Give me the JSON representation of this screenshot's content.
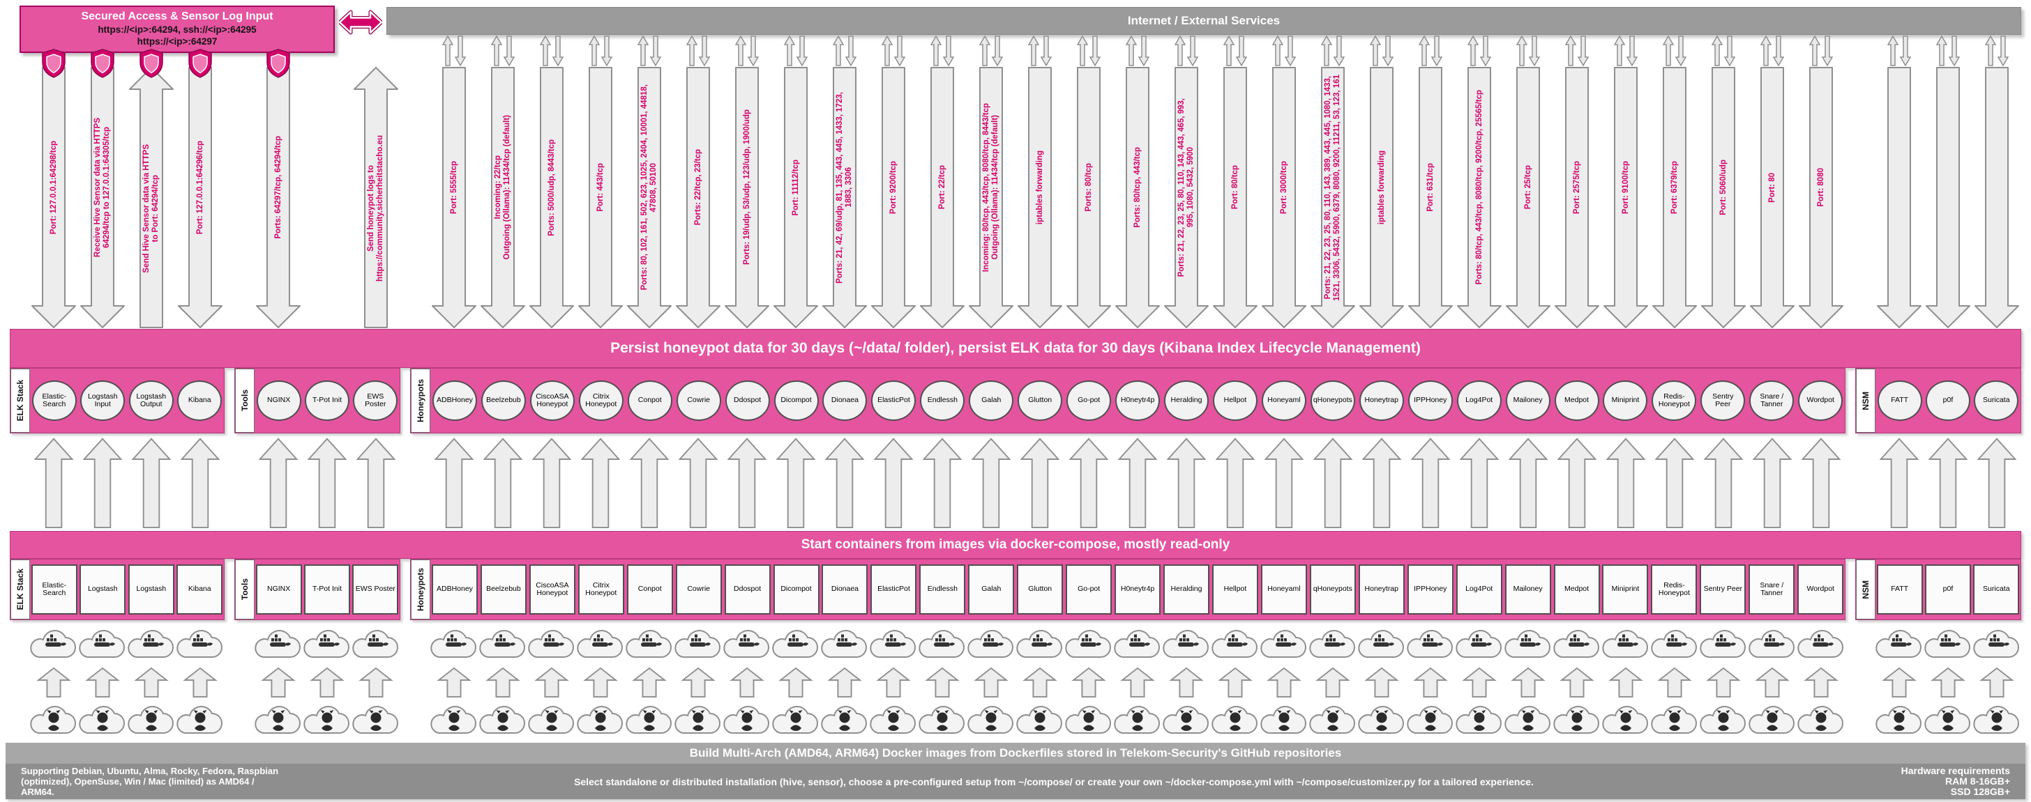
{
  "header": {
    "secured_box": {
      "title": "Secured Access & Sensor Log Input",
      "line1": "https://<ip>:64294, ssh://<ip>:64295",
      "line2": "https://<ip>:64297"
    },
    "internet_banner": "Internet / External Services"
  },
  "banners": {
    "persist": "Persist honeypot data for 30 days (~/data/ folder), persist ELK data for 30 days (Kibana Index Lifecycle Management)",
    "start": "Start containers from images via docker-compose, mostly read-only",
    "build": "Build Multi-Arch (AMD64, ARM64) Docker images from Dockerfiles stored in Telekom-Security's GitHub repositories"
  },
  "footer": {
    "left": "Supporting Debian, Ubuntu, Alma, Rocky, Fedora, Raspbian (optimized), OpenSuse, Win / Mac (limited) as AMD64 / ARM64.",
    "center": "Select standalone or distributed installation (hive, sensor), choose a pre-configured setup from ~/compose/ or create your own ~/docker-compose.yml with ~/compose/customizer.py for a tailored experience.",
    "right_title": "Hardware requirements",
    "right_lines": [
      "RAM 8-16GB+",
      "SSD 128GB+"
    ]
  },
  "icons": {
    "secure": "security-shield-icon",
    "bidirectional_traffic": "up-down-traffic-icon",
    "exchange": "left-right-arrow-icon",
    "docker": "docker-cloud-icon",
    "github": "github-cloud-icon"
  },
  "colors": {
    "magenta": "#d4006a",
    "band_pink": "#e5549f",
    "gray_banner": "#9b9b9b",
    "footer_gray": "#8e8e8e",
    "arrow_fill": "#ededed",
    "node_fill": "#f2f2f2"
  },
  "groups": [
    {
      "label": "ELK Stack",
      "nodes": [
        {
          "container": "Elastic-Search",
          "image": "Elastic-Search",
          "top": "shield",
          "arrow": {
            "dir": "down",
            "lines": [
              "Port: 127.0.0.1:64298/tcp"
            ]
          }
        },
        {
          "container": "Logstash Input",
          "image": "Logstash",
          "top": "shield",
          "arrow": {
            "dir": "down",
            "lines": [
              "Receive Hive Sensor data via HTTPS",
              "64294/tcp to 127.0.0.1:64305/tcp"
            ]
          }
        },
        {
          "container": "Logstash Output",
          "image": "Logstash",
          "top": "shield",
          "arrow": {
            "dir": "up",
            "lines": [
              "Send Hive Sensor data via HTTPS",
              "to Port: 64294/tcp"
            ]
          }
        },
        {
          "container": "Kibana",
          "image": "Kibana",
          "top": "shield",
          "arrow": {
            "dir": "down",
            "lines": [
              "Port: 127.0.0.1:64296/tcp"
            ]
          }
        }
      ]
    },
    {
      "label": "Tools",
      "nodes": [
        {
          "container": "NGINX",
          "image": "NGINX",
          "top": "shield",
          "arrow": {
            "dir": "down",
            "lines": [
              "Ports: 64297/tcp, 64294/tcp"
            ]
          }
        },
        {
          "container": "T-Pot Init",
          "image": "T-Pot Init",
          "top": "none",
          "arrow": null
        },
        {
          "container": "EWS Poster",
          "image": "EWS Poster",
          "top": "none",
          "arrow": {
            "dir": "up",
            "lines": [
              "Send honeypot logs to",
              "https://community.sicherheitstacho.eu"
            ]
          }
        }
      ]
    },
    {
      "label": "Honeypots",
      "nodes": [
        {
          "container": "ADBHoney",
          "image": "ADBHoney",
          "top": "bidir",
          "arrow": {
            "dir": "down",
            "lines": [
              "Port: 5555/tcp"
            ]
          }
        },
        {
          "container": "Beelzebub",
          "image": "Beelzebub",
          "top": "bidir",
          "arrow": {
            "dir": "down",
            "lines": [
              "Incoming: 22/tcp",
              "Outgoing (Ollama): 11434/tcp (default)"
            ]
          }
        },
        {
          "container": "CiscoASA Honeypot",
          "image": "CiscoASA Honeypot",
          "top": "bidir",
          "arrow": {
            "dir": "down",
            "lines": [
              "Ports: 5000/udp, 8443/tcp"
            ]
          }
        },
        {
          "container": "Citrix Honeypot",
          "image": "Citrix Honeypot",
          "top": "bidir",
          "arrow": {
            "dir": "down",
            "lines": [
              "Port: 443/tcp"
            ]
          }
        },
        {
          "container": "Conpot",
          "image": "Conpot",
          "top": "bidir",
          "arrow": {
            "dir": "down",
            "lines": [
              "Ports: 80, 102, 161, 502, 623, 1025, 2404, 10001, 44818,",
              "47808, 50100"
            ]
          }
        },
        {
          "container": "Cowrie",
          "image": "Cowrie",
          "top": "bidir",
          "arrow": {
            "dir": "down",
            "lines": [
              "Ports: 22/tcp, 23/tcp"
            ]
          }
        },
        {
          "container": "Ddospot",
          "image": "Ddospot",
          "top": "bidir",
          "arrow": {
            "dir": "down",
            "lines": [
              "Ports: 19/udp, 53/udp, 123/udp, 1900/udp"
            ]
          }
        },
        {
          "container": "Dicompot",
          "image": "Dicompot",
          "top": "bidir",
          "arrow": {
            "dir": "down",
            "lines": [
              "Port: 11112/tcp"
            ]
          }
        },
        {
          "container": "Dionaea",
          "image": "Dionaea",
          "top": "bidir",
          "arrow": {
            "dir": "down",
            "lines": [
              "Ports: 21, 42, 69/udp, 81, 135, 443, 445, 1433, 1723,",
              "1883, 3306"
            ]
          }
        },
        {
          "container": "ElasticPot",
          "image": "ElasticPot",
          "top": "bidir",
          "arrow": {
            "dir": "down",
            "lines": [
              "Port: 9200/tcp"
            ]
          }
        },
        {
          "container": "Endlessh",
          "image": "Endlessh",
          "top": "bidir",
          "arrow": {
            "dir": "down",
            "lines": [
              "Port: 22/tcp"
            ]
          }
        },
        {
          "container": "Galah",
          "image": "Galah",
          "top": "bidir",
          "arrow": {
            "dir": "down",
            "lines": [
              "Incoming: 80/tcp, 443/tcp, 8080/tcp, 8443/tcp",
              "Outgoing (Ollama): 11434/tcp (default)"
            ]
          }
        },
        {
          "container": "Glutton",
          "image": "Glutton",
          "top": "bidir",
          "arrow": {
            "dir": "down",
            "lines": [
              "iptables forwarding"
            ]
          }
        },
        {
          "container": "Go-pot",
          "image": "Go-pot",
          "top": "bidir",
          "arrow": {
            "dir": "down",
            "lines": [
              "Ports: 80/tcp"
            ]
          }
        },
        {
          "container": "H0neytr4p",
          "image": "H0neytr4p",
          "top": "bidir",
          "arrow": {
            "dir": "down",
            "lines": [
              "Ports: 80/tcp, 443/tcp"
            ]
          }
        },
        {
          "container": "Heralding",
          "image": "Heralding",
          "top": "bidir",
          "arrow": {
            "dir": "down",
            "lines": [
              "Ports: 21, 22, 23, 25, 80, 110, 143, 443, 465, 993,",
              "995, 1080, 5432, 5900"
            ]
          }
        },
        {
          "container": "Hellpot",
          "image": "Hellpot",
          "top": "bidir",
          "arrow": {
            "dir": "down",
            "lines": [
              "Port: 80/tcp"
            ]
          }
        },
        {
          "container": "Honeyaml",
          "image": "Honeyaml",
          "top": "bidir",
          "arrow": {
            "dir": "down",
            "lines": [
              "Port: 3000/tcp"
            ]
          }
        },
        {
          "container": "qHoneypots",
          "image": "qHoneypots",
          "top": "bidir",
          "arrow": {
            "dir": "down",
            "lines": [
              "Ports: 21, 22, 23, 25, 80, 110, 143, 389, 443, 445, 1080, 1433,",
              "1521, 3306, 5432, 5900, 6379, 8080, 9200, 11211, 53, 123, 161"
            ]
          }
        },
        {
          "container": "Honeytrap",
          "image": "Honeytrap",
          "top": "bidir",
          "arrow": {
            "dir": "down",
            "lines": [
              "iptables forwarding"
            ]
          }
        },
        {
          "container": "IPPHoney",
          "image": "IPPHoney",
          "top": "bidir",
          "arrow": {
            "dir": "down",
            "lines": [
              "Port: 631/tcp"
            ]
          }
        },
        {
          "container": "Log4Pot",
          "image": "Log4Pot",
          "top": "bidir",
          "arrow": {
            "dir": "down",
            "lines": [
              "Ports: 80/tcp, 443/tcp, 8080/tcp, 9200/tcp, 25565/tcp"
            ]
          }
        },
        {
          "container": "Mailoney",
          "image": "Mailoney",
          "top": "bidir",
          "arrow": {
            "dir": "down",
            "lines": [
              "Port: 25/tcp"
            ]
          }
        },
        {
          "container": "Medpot",
          "image": "Medpot",
          "top": "bidir",
          "arrow": {
            "dir": "down",
            "lines": [
              "Port: 2575/tcp"
            ]
          }
        },
        {
          "container": "Miniprint",
          "image": "Miniprint",
          "top": "bidir",
          "arrow": {
            "dir": "down",
            "lines": [
              "Port: 9100/tcp"
            ]
          }
        },
        {
          "container": "Redis-Honeypot",
          "image": "Redis-Honeypot",
          "top": "bidir",
          "arrow": {
            "dir": "down",
            "lines": [
              "Port: 6379/tcp"
            ]
          }
        },
        {
          "container": "Sentry Peer",
          "image": "Sentry Peer",
          "top": "bidir",
          "arrow": {
            "dir": "down",
            "lines": [
              "Port: 5060/udp"
            ]
          }
        },
        {
          "container": "Snare / Tanner",
          "image": "Snare / Tanner",
          "top": "bidir",
          "arrow": {
            "dir": "down",
            "lines": [
              "Port: 80"
            ]
          }
        },
        {
          "container": "Wordpot",
          "image": "Wordpot",
          "top": "bidir",
          "arrow": {
            "dir": "down",
            "lines": [
              "Port: 8080"
            ]
          }
        }
      ]
    },
    {
      "label": "NSM",
      "nodes": [
        {
          "container": "FATT",
          "image": "FATT",
          "top": "bidir",
          "arrow": {
            "dir": "down",
            "lines": []
          }
        },
        {
          "container": "p0f",
          "image": "p0f",
          "top": "bidir",
          "arrow": {
            "dir": "down",
            "lines": []
          }
        },
        {
          "container": "Suricata",
          "image": "Suricata",
          "top": "bidir",
          "arrow": {
            "dir": "down",
            "lines": []
          }
        }
      ]
    }
  ]
}
